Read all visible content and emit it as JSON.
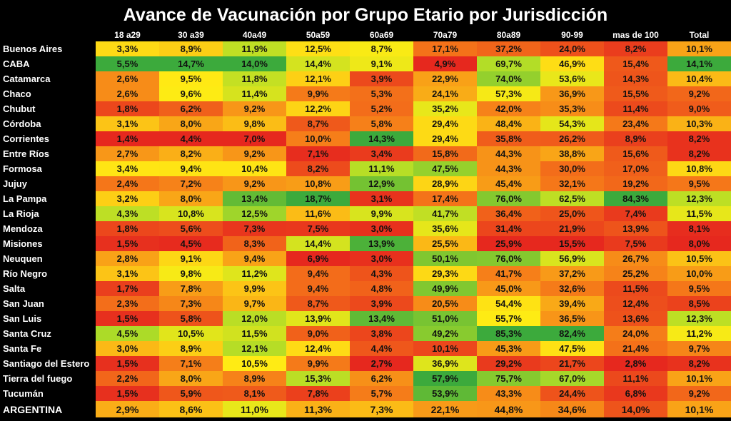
{
  "chart_data": {
    "type": "heatmap",
    "title": "Avance de Vacunación por Grupo Etario por Jurisdicción",
    "columns": [
      "18 a29",
      "30 a39",
      "40a49",
      "50a59",
      "60a69",
      "70a79",
      "80a89",
      "90-99",
      "mas de 100",
      "Total"
    ],
    "rows": [
      {
        "label": "Buenos Aires",
        "values": [
          "3,3%",
          "8,9%",
          "11,9%",
          "12,5%",
          "8,7%",
          "17,1%",
          "37,2%",
          "24,0%",
          "8,2%",
          "10,1%"
        ]
      },
      {
        "label": "CABA",
        "values": [
          "5,5%",
          "14,7%",
          "14,0%",
          "14,4%",
          "9,1%",
          "4,9%",
          "69,7%",
          "46,9%",
          "15,4%",
          "14,1%"
        ]
      },
      {
        "label": "Catamarca",
        "values": [
          "2,6%",
          "9,5%",
          "11,8%",
          "12,1%",
          "3,9%",
          "22,9%",
          "74,0%",
          "53,6%",
          "14,3%",
          "10,4%"
        ]
      },
      {
        "label": "Chaco",
        "values": [
          "2,6%",
          "9,6%",
          "11,4%",
          "9,9%",
          "5,3%",
          "24,1%",
          "57,3%",
          "36,9%",
          "15,5%",
          "9,2%"
        ]
      },
      {
        "label": "Chubut",
        "values": [
          "1,8%",
          "6,2%",
          "9,2%",
          "12,2%",
          "5,2%",
          "35,2%",
          "42,0%",
          "35,3%",
          "11,4%",
          "9,0%"
        ]
      },
      {
        "label": "Córdoba",
        "values": [
          "3,1%",
          "8,0%",
          "9,8%",
          "8,7%",
          "5,8%",
          "29,4%",
          "48,4%",
          "54,3%",
          "23,4%",
          "10,3%"
        ]
      },
      {
        "label": "Corrientes",
        "values": [
          "1,4%",
          "4,4%",
          "7,0%",
          "10,0%",
          "14,3%",
          "29,4%",
          "35,8%",
          "26,2%",
          "8,9%",
          "8,2%"
        ]
      },
      {
        "label": "Entre Ríos",
        "values": [
          "2,7%",
          "8,2%",
          "9,2%",
          "7,1%",
          "3,4%",
          "15,8%",
          "44,3%",
          "38,8%",
          "15,6%",
          "8,2%"
        ]
      },
      {
        "label": "Formosa",
        "values": [
          "3,4%",
          "9,4%",
          "10,4%",
          "8,2%",
          "11,1%",
          "47,5%",
          "44,3%",
          "30,0%",
          "17,0%",
          "10,8%"
        ]
      },
      {
        "label": "Jujuy",
        "values": [
          "2,4%",
          "7,2%",
          "9,2%",
          "10,8%",
          "12,9%",
          "28,9%",
          "45,4%",
          "32,1%",
          "19,2%",
          "9,5%"
        ]
      },
      {
        "label": "La Pampa",
        "values": [
          "3,2%",
          "8,0%",
          "13,4%",
          "18,7%",
          "3,1%",
          "17,4%",
          "76,0%",
          "62,5%",
          "84,3%",
          "12,3%"
        ]
      },
      {
        "label": "La Rioja",
        "values": [
          "4,3%",
          "10,8%",
          "12,5%",
          "11,6%",
          "9,9%",
          "41,7%",
          "36,4%",
          "25,0%",
          "7,4%",
          "11,5%"
        ]
      },
      {
        "label": "Mendoza",
        "values": [
          "1,8%",
          "5,6%",
          "7,3%",
          "7,5%",
          "3,0%",
          "35,6%",
          "31,4%",
          "21,9%",
          "13,9%",
          "8,1%"
        ]
      },
      {
        "label": "Misiones",
        "values": [
          "1,5%",
          "4,5%",
          "8,3%",
          "14,4%",
          "13,9%",
          "25,5%",
          "25,9%",
          "15,5%",
          "7,5%",
          "8,0%"
        ]
      },
      {
        "label": "Neuquen",
        "values": [
          "2,8%",
          "9,1%",
          "9,4%",
          "6,9%",
          "3,0%",
          "50,1%",
          "76,0%",
          "56,9%",
          "26,7%",
          "10,5%"
        ]
      },
      {
        "label": "Río Negro",
        "values": [
          "3,1%",
          "9,8%",
          "11,2%",
          "9,4%",
          "4,3%",
          "29,3%",
          "41,7%",
          "37,2%",
          "25,2%",
          "10,0%"
        ]
      },
      {
        "label": "Salta",
        "values": [
          "1,7%",
          "7,8%",
          "9,9%",
          "9,4%",
          "4,8%",
          "49,9%",
          "45,0%",
          "32,6%",
          "11,5%",
          "9,5%"
        ]
      },
      {
        "label": "San Juan",
        "values": [
          "2,3%",
          "7,3%",
          "9,7%",
          "8,7%",
          "3,9%",
          "20,5%",
          "54,4%",
          "39,4%",
          "12,4%",
          "8,5%"
        ]
      },
      {
        "label": "San Luis",
        "values": [
          "1,5%",
          "5,8%",
          "12,0%",
          "13,9%",
          "13,4%",
          "51,0%",
          "55,7%",
          "36,5%",
          "13,6%",
          "12,3%"
        ]
      },
      {
        "label": "Santa Cruz",
        "values": [
          "4,5%",
          "10,5%",
          "11,5%",
          "9,0%",
          "3,8%",
          "49,2%",
          "85,3%",
          "82,4%",
          "24,0%",
          "11,2%"
        ]
      },
      {
        "label": "Santa Fe",
        "values": [
          "3,0%",
          "8,9%",
          "12,1%",
          "12,4%",
          "4,4%",
          "10,1%",
          "45,3%",
          "47,5%",
          "21,4%",
          "9,7%"
        ]
      },
      {
        "label": "Santiago del Estero",
        "values": [
          "1,5%",
          "7,1%",
          "10,5%",
          "9,9%",
          "2,7%",
          "36,9%",
          "29,2%",
          "21,7%",
          "2,8%",
          "8,2%"
        ]
      },
      {
        "label": "Tierra del fuego",
        "values": [
          "2,2%",
          "8,0%",
          "8,9%",
          "15,3%",
          "6,2%",
          "57,9%",
          "75,7%",
          "67,0%",
          "11,1%",
          "10,1%"
        ]
      },
      {
        "label": "Tucumán",
        "values": [
          "1,5%",
          "5,9%",
          "8,1%",
          "7,8%",
          "5,7%",
          "53,9%",
          "43,3%",
          "24,4%",
          "6,8%",
          "9,2%"
        ]
      },
      {
        "label": "ARGENTINA",
        "values": [
          "2,9%",
          "8,6%",
          "11,0%",
          "11,3%",
          "7,3%",
          "22,1%",
          "44,8%",
          "34,6%",
          "14,0%",
          "10,1%"
        ]
      }
    ]
  }
}
